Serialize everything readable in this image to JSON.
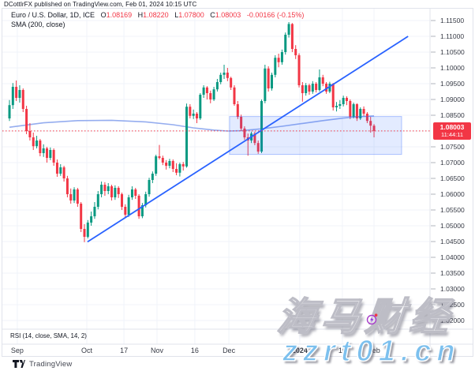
{
  "header": {
    "published_line": "DCottlrFX published on TradingView.com, Feb 01, 2024 10:15 UTC"
  },
  "legend": {
    "symbol": "Euro / U.S. Dollar, 1D, ICE",
    "ohlc": {
      "o_label": "O",
      "o": "1.08169",
      "h_label": "H",
      "h": "1.08220",
      "l_label": "L",
      "l": "1.07800",
      "c_label": "C",
      "c": "1.08003",
      "change": "-0.00166 (-0.15%)"
    },
    "indicator": "SMA (200, close)"
  },
  "rsi_label": "RSI (14, close, SMA, 14, 2)",
  "price_badge": {
    "price": "1.08003",
    "countdown": "11:44:11"
  },
  "footer": {
    "brand": "TradingView"
  },
  "watermark": {
    "cn": "海马财经",
    "site": "zzrt01.cn"
  },
  "colors": {
    "up": "#089981",
    "down": "#f23645",
    "grid": "#f0f3fa",
    "axis_line": "#e0e3eb",
    "tick_text": "#363a45",
    "sma": "#8fa9ee",
    "trendline": "#2962ff",
    "zone_fill": "rgba(41,98,255,0.13)",
    "zone_border": "rgba(41,98,255,0.35)",
    "last_price": "#f23645"
  },
  "chart_data": {
    "type": "candlestick",
    "title": "Euro / U.S. Dollar, 1D, ICE",
    "symbol": "EURUSD",
    "timeframe": "1D",
    "exchange": "ICE",
    "last": {
      "open": 1.08169,
      "high": 1.0822,
      "low": 1.078,
      "close": 1.08003,
      "change": -0.00166,
      "change_pct": -0.15
    },
    "y_axis": {
      "ticks": [
        "1.11500",
        "1.11000",
        "1.10500",
        "1.10000",
        "1.09500",
        "1.09000",
        "1.08500",
        "1.08000",
        "1.07500",
        "1.07000",
        "1.06500",
        "1.06000",
        "1.05500",
        "1.05000",
        "1.04500",
        "1.04000",
        "1.03500",
        "1.03000",
        "1.02500",
        "1.02000"
      ]
    },
    "x_axis": {
      "ticks": [
        {
          "label": "Sep",
          "i": 2.3,
          "bold": false
        },
        {
          "label": "Oct",
          "i": 22.7,
          "bold": false
        },
        {
          "label": "17",
          "i": 33.6,
          "bold": false
        },
        {
          "label": "Nov",
          "i": 43.3,
          "bold": false
        },
        {
          "label": "16",
          "i": 54.4,
          "bold": false
        },
        {
          "label": "Dec",
          "i": 64.4,
          "bold": false
        },
        {
          "label": "2024",
          "i": 85.2,
          "bold": true
        },
        {
          "label": "16",
          "i": 97.7,
          "bold": false
        },
        {
          "label": "Feb",
          "i": 107,
          "bold": false
        }
      ]
    },
    "candles": [
      [
        1.084,
        1.0898,
        1.0832,
        1.0882
      ],
      [
        1.0882,
        1.0952,
        1.087,
        1.094
      ],
      [
        1.094,
        1.096,
        1.0895,
        1.0905
      ],
      [
        1.0905,
        1.0945,
        1.089,
        1.093
      ],
      [
        1.093,
        1.0935,
        1.086,
        1.087
      ],
      [
        1.087,
        1.088,
        1.079,
        1.08
      ],
      [
        1.08,
        1.0825,
        1.077,
        1.078
      ],
      [
        1.078,
        1.0795,
        1.074,
        1.0752
      ],
      [
        1.0752,
        1.0785,
        1.0745,
        1.077
      ],
      [
        1.077,
        1.0775,
        1.072,
        1.073
      ],
      [
        1.073,
        1.0758,
        1.0718,
        1.0745
      ],
      [
        1.0745,
        1.075,
        1.07,
        1.0715
      ],
      [
        1.0715,
        1.0748,
        1.0708,
        1.074
      ],
      [
        1.074,
        1.0745,
        1.069,
        1.07
      ],
      [
        1.07,
        1.071,
        1.0655,
        1.0665
      ],
      [
        1.0665,
        1.0695,
        1.0658,
        1.0685
      ],
      [
        1.0685,
        1.069,
        1.064,
        1.065
      ],
      [
        1.065,
        1.0658,
        1.059,
        1.06
      ],
      [
        1.06,
        1.0618,
        1.057,
        1.058
      ],
      [
        1.058,
        1.0622,
        1.0572,
        1.0615
      ],
      [
        1.0615,
        1.062,
        1.056,
        1.057
      ],
      [
        1.057,
        1.0575,
        1.048,
        1.049
      ],
      [
        1.049,
        1.0505,
        1.0448,
        1.0465
      ],
      [
        1.0465,
        1.0518,
        1.046,
        1.051
      ],
      [
        1.051,
        1.0545,
        1.05,
        1.053
      ],
      [
        1.053,
        1.0575,
        1.0522,
        1.056
      ],
      [
        1.056,
        1.061,
        1.0552,
        1.06
      ],
      [
        1.06,
        1.064,
        1.059,
        1.063
      ],
      [
        1.063,
        1.0638,
        1.0595,
        1.061
      ],
      [
        1.061,
        1.0635,
        1.06,
        1.0625
      ],
      [
        1.0625,
        1.063,
        1.058,
        1.059
      ],
      [
        1.059,
        1.0628,
        1.0582,
        1.062
      ],
      [
        1.062,
        1.0625,
        1.0588,
        1.06
      ],
      [
        1.06,
        1.0605,
        1.055,
        1.056
      ],
      [
        1.056,
        1.0568,
        1.0525,
        1.0535
      ],
      [
        1.0535,
        1.0598,
        1.0528,
        1.059
      ],
      [
        1.059,
        1.0625,
        1.0582,
        1.0615
      ],
      [
        1.0615,
        1.062,
        1.0585,
        1.0595
      ],
      [
        1.0595,
        1.06,
        1.0522,
        1.053
      ],
      [
        1.053,
        1.0572,
        1.0524,
        1.0565
      ],
      [
        1.0565,
        1.0608,
        1.0558,
        1.06
      ],
      [
        1.06,
        1.0652,
        1.0592,
        1.0645
      ],
      [
        1.0645,
        1.0672,
        1.0635,
        1.0665
      ],
      [
        1.0665,
        1.0725,
        1.0658,
        1.072
      ],
      [
        1.072,
        1.0756,
        1.071,
        1.0715
      ],
      [
        1.0715,
        1.0722,
        1.0692,
        1.07
      ],
      [
        1.07,
        1.0708,
        1.0678,
        1.069
      ],
      [
        1.069,
        1.0712,
        1.0682,
        1.0705
      ],
      [
        1.0705,
        1.071,
        1.067,
        1.068
      ],
      [
        1.068,
        1.0698,
        1.066,
        1.0668
      ],
      [
        1.0668,
        1.07,
        1.0656,
        1.0695
      ],
      [
        1.0695,
        1.0702,
        1.0675,
        1.0688
      ],
      [
        1.0688,
        1.0887,
        1.0684,
        1.0877
      ],
      [
        1.0877,
        1.0885,
        1.084,
        1.0848
      ],
      [
        1.0848,
        1.0868,
        1.0838,
        1.0855
      ],
      [
        1.0855,
        1.086,
        1.0825,
        1.084
      ],
      [
        1.084,
        1.092,
        1.0835,
        1.0915
      ],
      [
        1.0915,
        1.0945,
        1.0905,
        1.0938
      ],
      [
        1.0938,
        1.0942,
        1.09,
        1.092
      ],
      [
        1.092,
        1.0928,
        1.0888,
        1.09
      ],
      [
        1.09,
        1.094,
        1.0895,
        1.0932
      ],
      [
        1.0932,
        1.0965,
        1.0925,
        1.0955
      ],
      [
        1.0955,
        1.0985,
        1.0948,
        1.0978
      ],
      [
        1.0978,
        1.101,
        1.0965,
        1.0985
      ],
      [
        1.0985,
        1.1,
        1.0958,
        1.0968
      ],
      [
        1.0968,
        1.0972,
        1.093,
        1.0938
      ],
      [
        1.0938,
        1.0945,
        1.088,
        1.0885
      ],
      [
        1.0885,
        1.0895,
        1.0838,
        1.0845
      ],
      [
        1.0845,
        1.0852,
        1.08,
        1.0808
      ],
      [
        1.0808,
        1.0815,
        1.0772,
        1.078
      ],
      [
        1.078,
        1.0792,
        1.0722,
        1.077
      ],
      [
        1.077,
        1.0798,
        1.0762,
        1.0792
      ],
      [
        1.0792,
        1.0798,
        1.0755,
        1.0762
      ],
      [
        1.0762,
        1.077,
        1.0728,
        1.0735
      ],
      [
        1.0735,
        1.09,
        1.073,
        1.0895
      ],
      [
        1.0895,
        1.101,
        1.0888,
        1.0998
      ],
      [
        1.0998,
        1.1005,
        1.0925,
        1.0935
      ],
      [
        1.0935,
        1.0985,
        1.0928,
        1.0978
      ],
      [
        1.0978,
        1.104,
        1.097,
        1.1032
      ],
      [
        1.1032,
        1.1045,
        1.1002,
        1.1018
      ],
      [
        1.1018,
        1.1058,
        1.101,
        1.105
      ],
      [
        1.105,
        1.1112,
        1.1042,
        1.1105
      ],
      [
        1.1105,
        1.1145,
        1.1096,
        1.1139
      ],
      [
        1.1139,
        1.1142,
        1.105,
        1.106
      ],
      [
        1.106,
        1.1072,
        1.1028,
        1.104
      ],
      [
        1.104,
        1.1046,
        1.0938,
        1.0945
      ],
      [
        1.0945,
        1.0955,
        1.0893,
        1.092
      ],
      [
        1.092,
        1.0952,
        1.0912,
        1.0945
      ],
      [
        1.0945,
        1.095,
        1.0915,
        1.0925
      ],
      [
        1.0925,
        1.0958,
        1.0918,
        1.095
      ],
      [
        1.095,
        1.0955,
        1.0922,
        1.093
      ],
      [
        1.093,
        1.0995,
        1.0925,
        1.097
      ],
      [
        1.097,
        1.0978,
        1.0942,
        1.095
      ],
      [
        1.095,
        1.0955,
        1.0918,
        1.0925
      ],
      [
        1.0925,
        1.0956,
        1.092,
        1.095
      ],
      [
        1.095,
        1.0952,
        1.0865,
        1.0875
      ],
      [
        1.0875,
        1.0892,
        1.0862,
        1.088
      ],
      [
        1.088,
        1.0898,
        1.087,
        1.0885
      ],
      [
        1.0885,
        1.0912,
        1.0878,
        1.0905
      ],
      [
        1.0905,
        1.091,
        1.0882,
        1.0895
      ],
      [
        1.0895,
        1.09,
        1.0838,
        1.0845
      ],
      [
        1.0845,
        1.089,
        1.084,
        1.0885
      ],
      [
        1.0885,
        1.0888,
        1.0832,
        1.084
      ],
      [
        1.084,
        1.0875,
        1.0835,
        1.087
      ],
      [
        1.087,
        1.0878,
        1.0848,
        1.0855
      ],
      [
        1.0855,
        1.086,
        1.0825,
        1.0832
      ],
      [
        1.0832,
        1.0845,
        1.0795,
        1.0817
      ],
      [
        1.08169,
        1.0822,
        1.078,
        1.08003
      ]
    ],
    "overlays": {
      "sma200": {
        "name": "SMA (200, close)",
        "points": [
          [
            0,
            1.0812
          ],
          [
            10,
            1.0826
          ],
          [
            20,
            1.0833
          ],
          [
            30,
            1.0834
          ],
          [
            40,
            1.0829
          ],
          [
            48,
            1.082
          ],
          [
            54,
            1.081
          ],
          [
            60,
            1.0803
          ],
          [
            64,
            1.08
          ],
          [
            68,
            1.0801
          ],
          [
            74,
            1.0807
          ],
          [
            80,
            1.0815
          ],
          [
            86,
            1.0824
          ],
          [
            92,
            1.0833
          ],
          [
            98,
            1.0841
          ],
          [
            102,
            1.0845
          ],
          [
            107,
            1.0848
          ]
        ]
      },
      "trendline": {
        "i1": 22.9,
        "p1": 1.0449,
        "i2": 117,
        "p2": 1.11
      },
      "zone": {
        "i1": 64.6,
        "i2": 115.1,
        "price_top": 1.0846,
        "price_bottom": 1.0726
      },
      "last_price_line": 1.08003
    },
    "lower_pane": {
      "label": "RSI (14, close, SMA, 14, 2)"
    },
    "legend_grid": {
      "grid": true,
      "legend_position": "top-left"
    }
  }
}
